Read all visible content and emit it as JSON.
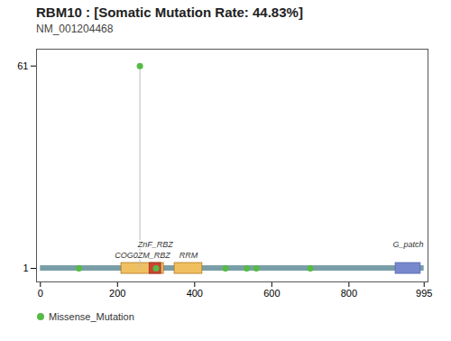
{
  "chart_data": {
    "type": "lollipop",
    "title": "RBM10 : [Somatic Mutation Rate: 44.83%]",
    "subtitle": "NM_001204468",
    "x": [
      100,
      258,
      300,
      480,
      535,
      560,
      700
    ],
    "series": [
      {
        "name": "Missense_Mutation",
        "color": "#55bb44",
        "values": [
          1,
          61,
          1,
          1,
          1,
          1,
          1
        ]
      }
    ],
    "stem_base": 1,
    "stem_color": "#bbbbbb",
    "protein": {
      "start": 0,
      "end": 995,
      "color": "#7a9ea8"
    },
    "domains": [
      {
        "name": "COG0ZM_RBZ",
        "start": 210,
        "end": 320,
        "color": "#f0c060",
        "border": "#b07820"
      },
      {
        "name": "ZnF_RBZ",
        "start": 283,
        "end": 313,
        "color": "#cc4433",
        "border": "#993322"
      },
      {
        "name": "RRM",
        "start": 348,
        "end": 420,
        "color": "#f0c060",
        "border": "#b07820"
      },
      {
        "name": "G_patch",
        "start": 921,
        "end": 986,
        "color": "#7788cc",
        "border": "#5566aa"
      }
    ],
    "xlim": [
      -10,
      1005
    ],
    "ylim": [
      -3,
      66
    ],
    "xticks": [
      0,
      200,
      400,
      600,
      800,
      995
    ],
    "yticks": [
      1,
      61
    ],
    "legend": "bottom"
  }
}
